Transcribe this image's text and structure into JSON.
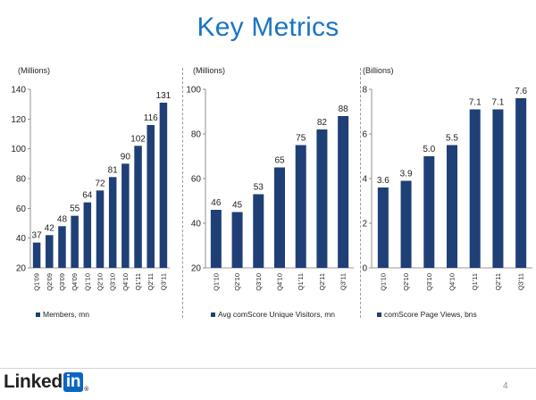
{
  "title": "Key Metrics",
  "page_number": "4",
  "logo": {
    "text_linked": "Linked",
    "text_in": "in",
    "registered": "®"
  },
  "colors": {
    "bar": "#1f3f77",
    "title": "#1a74c4",
    "logo_box": "#0a66c2"
  },
  "chart_data": [
    {
      "type": "bar",
      "unit_label": "(Millions)",
      "categories": [
        "Q1'09",
        "Q2'09",
        "Q3'09",
        "Q4'09",
        "Q1'10",
        "Q2'10",
        "Q3'10",
        "Q4'10",
        "Q1'11",
        "Q2'11",
        "Q3'11"
      ],
      "values": [
        37,
        42,
        48,
        55,
        64,
        72,
        81,
        90,
        102,
        116,
        131
      ],
      "ylim": [
        20,
        140
      ],
      "yticks": [
        20,
        40,
        60,
        80,
        100,
        120,
        140
      ],
      "legend": "Members, mn",
      "legend_position": "bottom",
      "grid": false
    },
    {
      "type": "bar",
      "unit_label": "(Millions)",
      "categories": [
        "Q1'10",
        "Q2'10",
        "Q3'10",
        "Q4'10",
        "Q1'11",
        "Q2'11",
        "Q3'11"
      ],
      "values": [
        46,
        45,
        53,
        65,
        75,
        82,
        88
      ],
      "ylim": [
        20,
        100
      ],
      "yticks": [
        20,
        40,
        60,
        80,
        100
      ],
      "legend": "Avg comScore Unique Visitors, mn",
      "legend_position": "bottom",
      "grid": false
    },
    {
      "type": "bar",
      "unit_label": "(Billions)",
      "categories": [
        "Q1'10",
        "Q2'10",
        "Q3'10",
        "Q4'10",
        "Q1'11",
        "Q2'11",
        "Q3'11"
      ],
      "values": [
        3.6,
        3.9,
        5.0,
        5.5,
        7.1,
        7.1,
        7.6
      ],
      "value_labels": [
        "3.6",
        "3.9",
        "5.0",
        "5.5",
        "7.1",
        "7.1",
        "7.6"
      ],
      "ylim": [
        0,
        8
      ],
      "yticks": [
        0,
        2,
        4,
        6,
        8
      ],
      "legend": "comScore Page Views, bns",
      "legend_position": "bottom",
      "grid": false
    }
  ]
}
